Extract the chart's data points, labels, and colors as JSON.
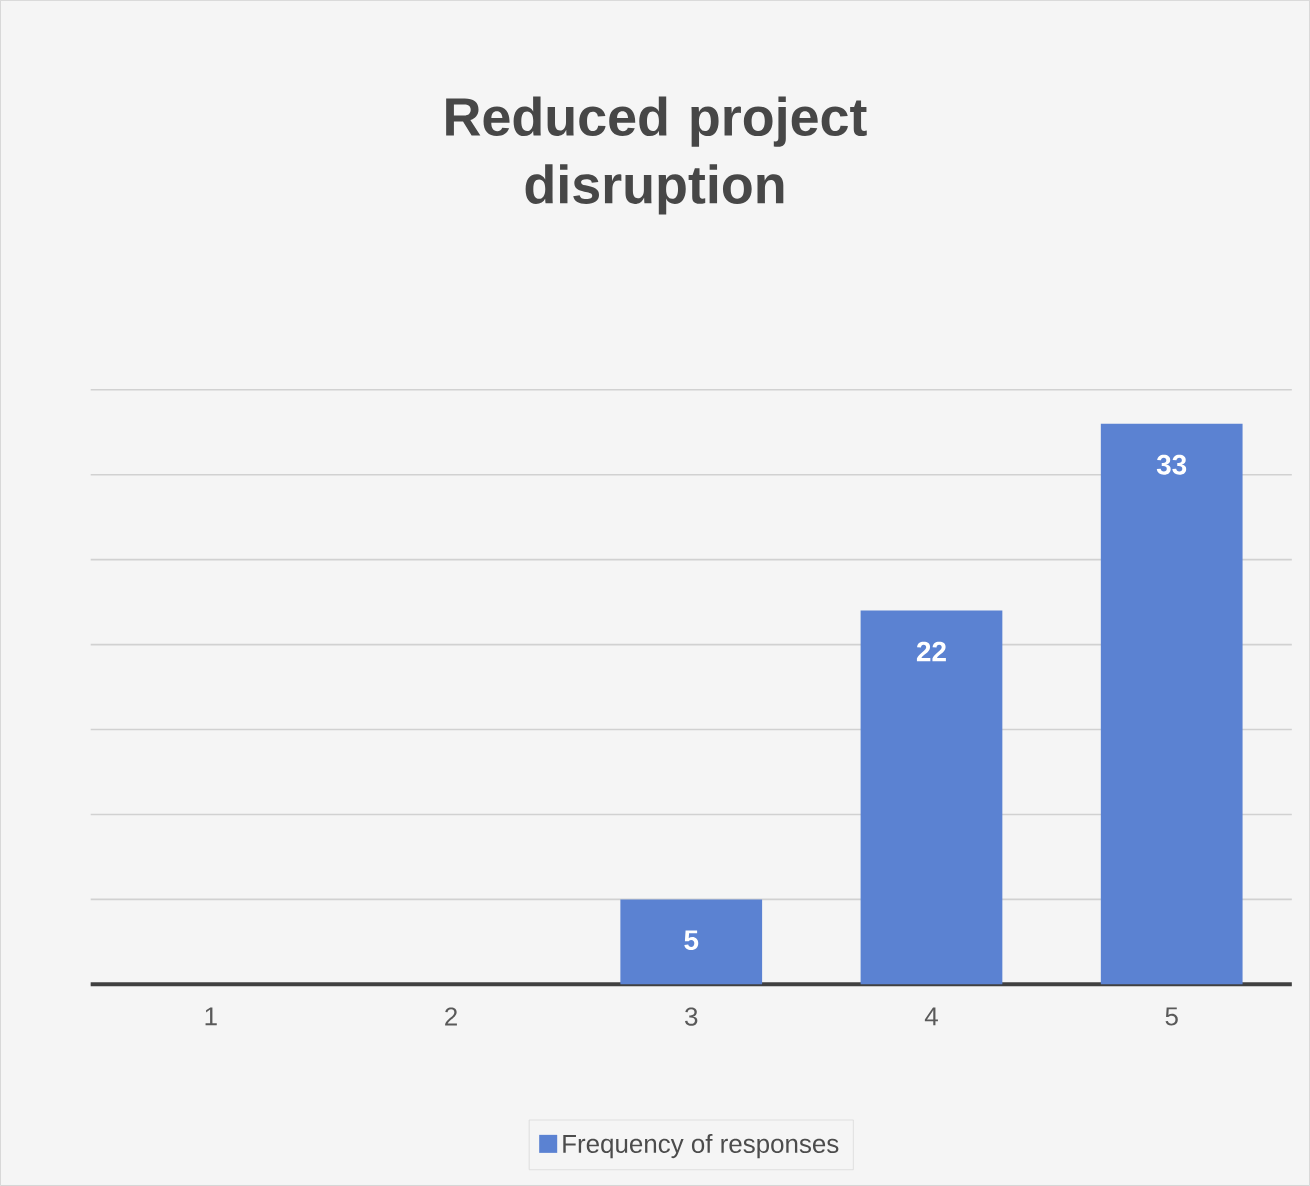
{
  "chart_data": {
    "type": "bar",
    "title": "Reduced project disruption",
    "categories": [
      "1",
      "2",
      "3",
      "4",
      "5"
    ],
    "series": [
      {
        "name": "Frequency of responses",
        "color": "#5b82d2",
        "values": [
          0,
          0,
          5,
          22,
          33
        ],
        "value_labels": [
          null,
          null,
          "5",
          "22",
          "33"
        ]
      }
    ],
    "ylim": [
      0,
      35
    ],
    "yticks": [
      {
        "value": 0,
        "label": null
      },
      {
        "value": 5,
        "label": null
      },
      {
        "value": 10,
        "label": null
      },
      {
        "value": 15,
        "label": null
      },
      {
        "value": 20,
        "label": null
      },
      {
        "value": 25,
        "label": null
      },
      {
        "value": 30,
        "label": null
      },
      {
        "value": 35,
        "label": null
      }
    ],
    "tick_labels": "x",
    "grid": "y",
    "legend": "bottom"
  }
}
